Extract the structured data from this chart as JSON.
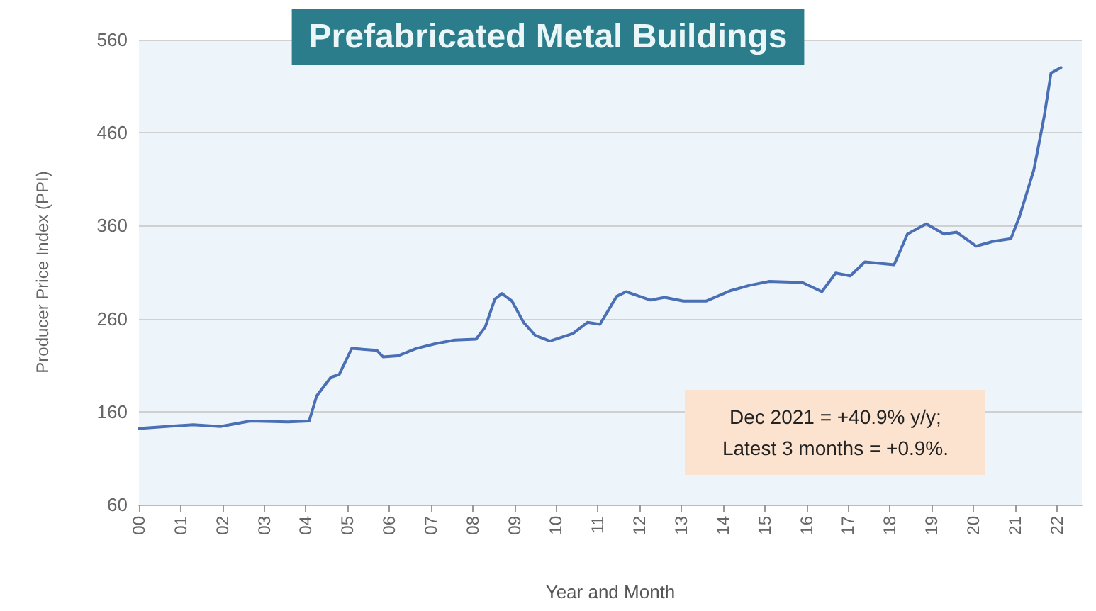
{
  "chart_data": {
    "type": "line",
    "title": "Prefabricated Metal Buildings",
    "xlabel": "Year and Month",
    "ylabel": "Producer Price Index (PPI)",
    "annotations": [
      "Dec 2021 = +40.9% y/y;\nLatest 3 months = +0.9%."
    ],
    "x": [
      2000.0,
      2001.3,
      2001.95,
      2002.67,
      2003.57,
      2004.08,
      2004.26,
      2004.6,
      2004.8,
      2005.1,
      2005.7,
      2005.85,
      2006.2,
      2006.65,
      2007.1,
      2007.57,
      2008.08,
      2008.3,
      2008.53,
      2008.7,
      2008.94,
      2009.22,
      2009.5,
      2009.85,
      2010.4,
      2010.75,
      2011.05,
      2011.45,
      2011.68,
      2012.26,
      2012.6,
      2013.05,
      2013.6,
      2014.17,
      2014.65,
      2015.1,
      2015.9,
      2016.37,
      2016.7,
      2017.05,
      2017.4,
      2018.1,
      2018.42,
      2018.87,
      2019.3,
      2019.6,
      2020.07,
      2020.46,
      2020.9,
      2021.1,
      2021.45,
      2021.55,
      2021.7,
      2021.86,
      2022.1
    ],
    "series": [
      {
        "color": "#4a6fb5",
        "values": [
          142,
          146,
          144,
          150,
          149,
          150,
          177,
          197,
          200,
          228,
          226,
          219,
          220,
          228,
          233,
          237,
          238,
          251,
          281,
          287,
          279,
          256,
          242,
          236,
          244,
          256,
          254,
          284,
          289,
          280,
          283,
          279,
          279,
          290,
          296,
          300,
          299,
          289,
          309,
          306,
          321,
          318,
          351,
          362,
          351,
          353,
          338,
          343,
          346,
          369,
          420,
          443,
          478,
          524,
          530
        ]
      }
    ],
    "xlim": [
      2000,
      2022.6
    ],
    "xticks": [
      {
        "value": 2000,
        "label": "00"
      },
      {
        "value": 2001,
        "label": "01"
      },
      {
        "value": 2002,
        "label": "02"
      },
      {
        "value": 2003,
        "label": "03"
      },
      {
        "value": 2004,
        "label": "04"
      },
      {
        "value": 2005,
        "label": "05"
      },
      {
        "value": 2006,
        "label": "06"
      },
      {
        "value": 2007,
        "label": "07"
      },
      {
        "value": 2008,
        "label": "08"
      },
      {
        "value": 2009,
        "label": "09"
      },
      {
        "value": 2010,
        "label": "10"
      },
      {
        "value": 2011,
        "label": "11"
      },
      {
        "value": 2012,
        "label": "12"
      },
      {
        "value": 2013,
        "label": "13"
      },
      {
        "value": 2014,
        "label": "14"
      },
      {
        "value": 2015,
        "label": "15"
      },
      {
        "value": 2016,
        "label": "16"
      },
      {
        "value": 2017,
        "label": "17"
      },
      {
        "value": 2018,
        "label": "18"
      },
      {
        "value": 2019,
        "label": "19"
      },
      {
        "value": 2020,
        "label": "20"
      },
      {
        "value": 2021,
        "label": "21"
      },
      {
        "value": 2022,
        "label": "22"
      }
    ],
    "ylim": [
      60,
      560
    ],
    "yticks": [
      60,
      160,
      260,
      360,
      460,
      560
    ],
    "grid": "y",
    "marker": "none",
    "line_style": "solid"
  }
}
